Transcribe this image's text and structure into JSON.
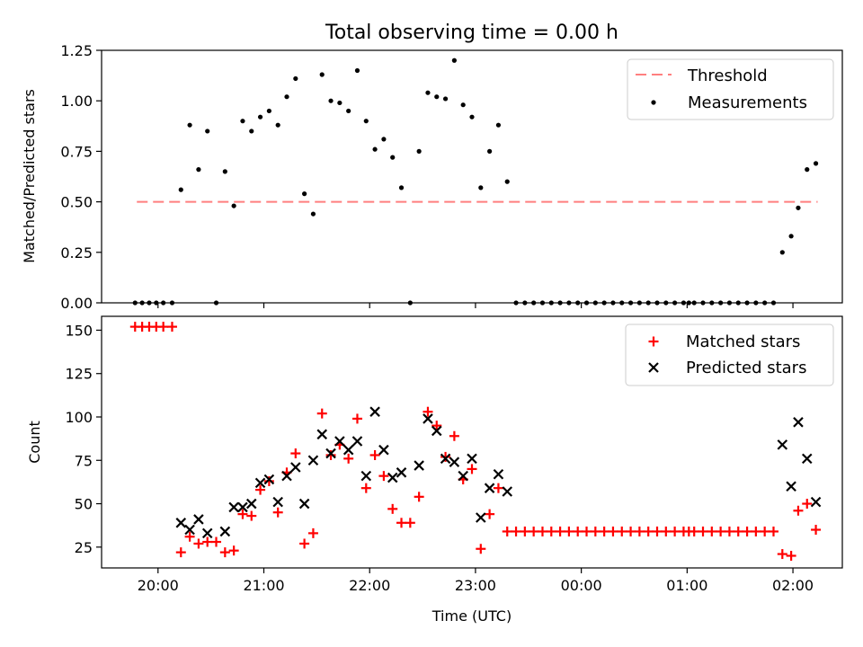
{
  "chart_data": [
    {
      "type": "scatter",
      "title": "Total observing time = 0.00 h",
      "xlabel": "",
      "ylabel": "Matched/Predicted stars",
      "xlim": [
        "19:28",
        "02:28"
      ],
      "ylim": [
        0,
        1.25
      ],
      "x_ticks": [
        "20:00",
        "21:00",
        "22:00",
        "23:00",
        "00:00",
        "01:00",
        "02:00"
      ],
      "y_ticks": [
        "0.00",
        "0.25",
        "0.50",
        "0.75",
        "1.00",
        "1.25"
      ],
      "legend": "upper right",
      "threshold": {
        "name": "Threshold",
        "color": "#ff7f7f",
        "style": "dashed",
        "value": 0.5,
        "x_range": [
          "19:48",
          "02:14"
        ]
      },
      "series": [
        {
          "name": "Measurements",
          "color": "#000000",
          "marker": "dot",
          "points": [
            [
              "19:47",
              0
            ],
            [
              "19:51",
              0
            ],
            [
              "19:55",
              0
            ],
            [
              "19:59",
              0
            ],
            [
              "20:03",
              0
            ],
            [
              "20:08",
              0
            ],
            [
              "20:13",
              0.56
            ],
            [
              "20:18",
              0.88
            ],
            [
              "20:23",
              0.66
            ],
            [
              "20:28",
              0.85
            ],
            [
              "20:33",
              0
            ],
            [
              "20:38",
              0.65
            ],
            [
              "20:43",
              0.48
            ],
            [
              "20:48",
              0.9
            ],
            [
              "20:53",
              0.85
            ],
            [
              "20:58",
              0.92
            ],
            [
              "21:03",
              0.95
            ],
            [
              "21:08",
              0.88
            ],
            [
              "21:13",
              1.02
            ],
            [
              "21:18",
              1.11
            ],
            [
              "21:23",
              0.54
            ],
            [
              "21:28",
              0.44
            ],
            [
              "21:33",
              1.13
            ],
            [
              "21:38",
              1.0
            ],
            [
              "21:43",
              0.99
            ],
            [
              "21:48",
              0.95
            ],
            [
              "21:53",
              1.15
            ],
            [
              "21:58",
              0.9
            ],
            [
              "22:03",
              0.76
            ],
            [
              "22:08",
              0.81
            ],
            [
              "22:13",
              0.72
            ],
            [
              "22:18",
              0.57
            ],
            [
              "22:23",
              0
            ],
            [
              "22:28",
              0.75
            ],
            [
              "22:33",
              1.04
            ],
            [
              "22:38",
              1.02
            ],
            [
              "22:43",
              1.01
            ],
            [
              "22:48",
              1.2
            ],
            [
              "22:53",
              0.98
            ],
            [
              "22:58",
              0.92
            ],
            [
              "23:03",
              0.57
            ],
            [
              "23:08",
              0.75
            ],
            [
              "23:13",
              0.88
            ],
            [
              "23:18",
              0.6
            ],
            [
              "23:23",
              0
            ],
            [
              "23:28",
              0
            ],
            [
              "23:33",
              0
            ],
            [
              "23:38",
              0
            ],
            [
              "23:43",
              0
            ],
            [
              "23:48",
              0
            ],
            [
              "23:53",
              0
            ],
            [
              "23:58",
              0
            ],
            [
              "00:03",
              0
            ],
            [
              "00:08",
              0
            ],
            [
              "00:13",
              0
            ],
            [
              "00:18",
              0
            ],
            [
              "00:23",
              0
            ],
            [
              "00:28",
              0
            ],
            [
              "00:33",
              0
            ],
            [
              "00:38",
              0
            ],
            [
              "00:43",
              0
            ],
            [
              "00:48",
              0
            ],
            [
              "00:53",
              0
            ],
            [
              "00:58",
              0
            ],
            [
              "01:01",
              0
            ],
            [
              "01:04",
              0
            ],
            [
              "01:09",
              0
            ],
            [
              "01:14",
              0
            ],
            [
              "01:19",
              0
            ],
            [
              "01:24",
              0
            ],
            [
              "01:29",
              0
            ],
            [
              "01:34",
              0
            ],
            [
              "01:39",
              0
            ],
            [
              "01:44",
              0
            ],
            [
              "01:49",
              0
            ],
            [
              "01:54",
              0.25
            ],
            [
              "01:59",
              0.33
            ],
            [
              "02:03",
              0.47
            ],
            [
              "02:08",
              0.66
            ],
            [
              "02:13",
              0.69
            ]
          ]
        }
      ]
    },
    {
      "type": "scatter",
      "title": "",
      "xlabel": "Time (UTC)",
      "ylabel": "Count",
      "xlim": [
        "19:28",
        "02:28"
      ],
      "ylim": [
        13,
        158
      ],
      "x_ticks": [
        "20:00",
        "21:00",
        "22:00",
        "23:00",
        "00:00",
        "01:00",
        "02:00"
      ],
      "y_ticks": [
        "25",
        "50",
        "75",
        "100",
        "125",
        "150"
      ],
      "legend": "upper right",
      "series": [
        {
          "name": "Matched stars",
          "color": "#ff0000",
          "marker": "plus",
          "points": [
            [
              "19:47",
              152
            ],
            [
              "19:51",
              152
            ],
            [
              "19:55",
              152
            ],
            [
              "19:59",
              152
            ],
            [
              "20:03",
              152
            ],
            [
              "20:08",
              152
            ],
            [
              "20:13",
              22
            ],
            [
              "20:18",
              31
            ],
            [
              "20:23",
              27
            ],
            [
              "20:28",
              28
            ],
            [
              "20:33",
              28
            ],
            [
              "20:38",
              22
            ],
            [
              "20:43",
              23
            ],
            [
              "20:48",
              44
            ],
            [
              "20:53",
              43
            ],
            [
              "20:58",
              58
            ],
            [
              "21:03",
              63
            ],
            [
              "21:08",
              45
            ],
            [
              "21:13",
              68
            ],
            [
              "21:18",
              79
            ],
            [
              "21:23",
              27
            ],
            [
              "21:28",
              33
            ],
            [
              "21:33",
              102
            ],
            [
              "21:38",
              78
            ],
            [
              "21:43",
              84
            ],
            [
              "21:48",
              76
            ],
            [
              "21:53",
              99
            ],
            [
              "21:58",
              59
            ],
            [
              "22:03",
              78
            ],
            [
              "22:08",
              66
            ],
            [
              "22:13",
              47
            ],
            [
              "22:18",
              39
            ],
            [
              "22:23",
              39
            ],
            [
              "22:28",
              54
            ],
            [
              "22:33",
              103
            ],
            [
              "22:38",
              95
            ],
            [
              "22:43",
              77
            ],
            [
              "22:48",
              89
            ],
            [
              "22:53",
              64
            ],
            [
              "22:58",
              70
            ],
            [
              "23:03",
              24
            ],
            [
              "23:08",
              44
            ],
            [
              "23:13",
              59
            ],
            [
              "23:18",
              34
            ],
            [
              "23:23",
              34
            ],
            [
              "23:28",
              34
            ],
            [
              "23:33",
              34
            ],
            [
              "23:38",
              34
            ],
            [
              "23:43",
              34
            ],
            [
              "23:48",
              34
            ],
            [
              "23:53",
              34
            ],
            [
              "23:58",
              34
            ],
            [
              "00:03",
              34
            ],
            [
              "00:08",
              34
            ],
            [
              "00:13",
              34
            ],
            [
              "00:18",
              34
            ],
            [
              "00:23",
              34
            ],
            [
              "00:28",
              34
            ],
            [
              "00:33",
              34
            ],
            [
              "00:38",
              34
            ],
            [
              "00:43",
              34
            ],
            [
              "00:48",
              34
            ],
            [
              "00:53",
              34
            ],
            [
              "00:58",
              34
            ],
            [
              "01:01",
              34
            ],
            [
              "01:04",
              34
            ],
            [
              "01:09",
              34
            ],
            [
              "01:14",
              34
            ],
            [
              "01:19",
              34
            ],
            [
              "01:24",
              34
            ],
            [
              "01:29",
              34
            ],
            [
              "01:34",
              34
            ],
            [
              "01:39",
              34
            ],
            [
              "01:44",
              34
            ],
            [
              "01:49",
              34
            ],
            [
              "01:54",
              21
            ],
            [
              "01:59",
              20
            ],
            [
              "02:03",
              46
            ],
            [
              "02:08",
              50
            ],
            [
              "02:13",
              35
            ]
          ]
        },
        {
          "name": "Predicted stars",
          "color": "#000000",
          "marker": "x",
          "points": [
            [
              "20:13",
              39
            ],
            [
              "20:18",
              35
            ],
            [
              "20:23",
              41
            ],
            [
              "20:28",
              33
            ],
            [
              "20:38",
              34
            ],
            [
              "20:43",
              48
            ],
            [
              "20:48",
              48
            ],
            [
              "20:53",
              50
            ],
            [
              "20:58",
              62
            ],
            [
              "21:03",
              64
            ],
            [
              "21:08",
              51
            ],
            [
              "21:13",
              66
            ],
            [
              "21:18",
              71
            ],
            [
              "21:23",
              50
            ],
            [
              "21:28",
              75
            ],
            [
              "21:33",
              90
            ],
            [
              "21:38",
              79
            ],
            [
              "21:43",
              86
            ],
            [
              "21:48",
              81
            ],
            [
              "21:53",
              86
            ],
            [
              "21:58",
              66
            ],
            [
              "22:03",
              103
            ],
            [
              "22:08",
              81
            ],
            [
              "22:13",
              65
            ],
            [
              "22:18",
              68
            ],
            [
              "22:28",
              72
            ],
            [
              "22:33",
              99
            ],
            [
              "22:38",
              92
            ],
            [
              "22:43",
              76
            ],
            [
              "22:48",
              74
            ],
            [
              "22:53",
              66
            ],
            [
              "22:58",
              76
            ],
            [
              "23:03",
              42
            ],
            [
              "23:08",
              59
            ],
            [
              "23:13",
              67
            ],
            [
              "23:18",
              57
            ],
            [
              "01:54",
              84
            ],
            [
              "01:59",
              60
            ],
            [
              "02:03",
              97
            ],
            [
              "02:08",
              76
            ],
            [
              "02:13",
              51
            ]
          ]
        }
      ]
    }
  ]
}
